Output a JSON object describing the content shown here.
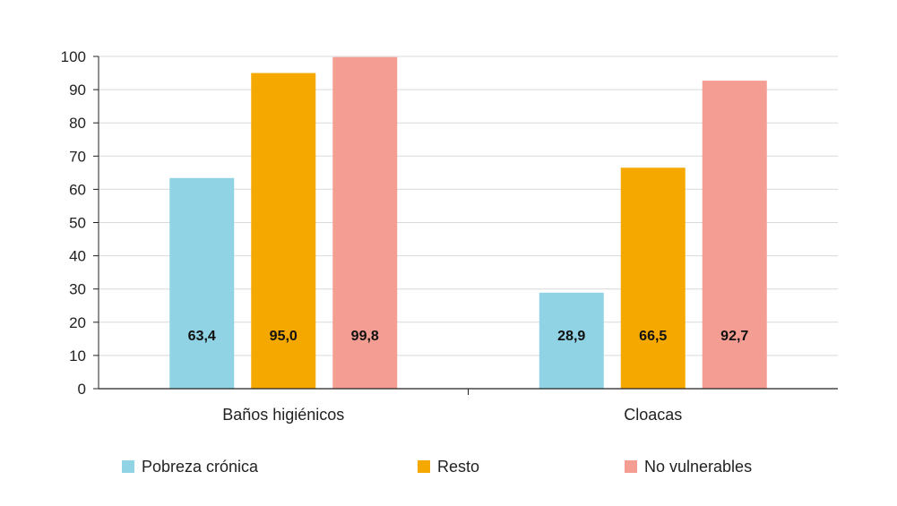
{
  "chart_data": {
    "type": "bar",
    "categories": [
      "Baños higiénicos",
      "Cloacas"
    ],
    "series": [
      {
        "name": "Pobreza crónica",
        "values": [
          63.4,
          28.9
        ],
        "labels": [
          "63,4",
          "28,9"
        ],
        "color": "#8fd3e4"
      },
      {
        "name": "Resto",
        "values": [
          95.0,
          66.5
        ],
        "labels": [
          "95,0",
          "66,5"
        ],
        "color": "#f5a800"
      },
      {
        "name": "No vulnerables",
        "values": [
          99.8,
          92.7
        ],
        "labels": [
          "99,8",
          "92,7"
        ],
        "color": "#f49d92"
      }
    ],
    "ylim": [
      0,
      100
    ],
    "yticks": [
      0,
      10,
      20,
      30,
      40,
      50,
      60,
      70,
      80,
      90,
      100
    ],
    "grid": true,
    "legend_position": "bottom",
    "title": "",
    "xlabel": "",
    "ylabel": ""
  }
}
